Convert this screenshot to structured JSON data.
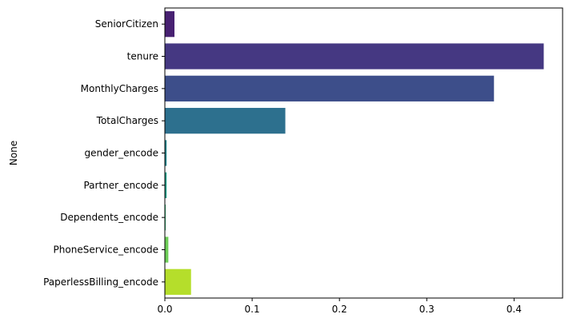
{
  "chart_data": {
    "type": "bar",
    "orientation": "horizontal",
    "title": "",
    "xlabel": "",
    "ylabel": "None",
    "categories": [
      "SeniorCitizen",
      "tenure",
      "MonthlyCharges",
      "TotalCharges",
      "gender_encode",
      "Partner_encode",
      "Dependents_encode",
      "PhoneService_encode",
      "PaperlessBilling_encode"
    ],
    "values": [
      0.011,
      0.434,
      0.377,
      0.138,
      0.002,
      0.002,
      0.001,
      0.004,
      0.03
    ],
    "colors": [
      "#482172",
      "#453882",
      "#3d4e8a",
      "#2d708e",
      "#24868e",
      "#1f9e89",
      "#35b779",
      "#6ece58",
      "#b5de2b"
    ],
    "xlim": [
      0,
      0.4556
    ],
    "xticks": [
      0.0,
      0.1,
      0.2,
      0.3,
      0.4
    ],
    "xtick_labels": [
      "0.0",
      "0.1",
      "0.2",
      "0.3",
      "0.4"
    ],
    "grid": false,
    "legend": "none"
  }
}
